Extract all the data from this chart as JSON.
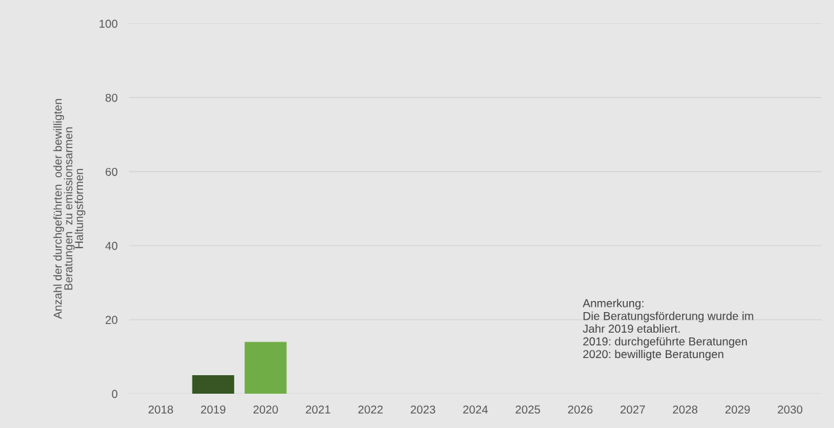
{
  "chart_data": {
    "type": "bar",
    "ylabel": "Anzahl der durchgeführten  oder bewilligten\nBeratungen  zu emissionsarmen\nHaltungsformen",
    "categories": [
      "2018",
      "2019",
      "2020",
      "2021",
      "2022",
      "2023",
      "2024",
      "2025",
      "2026",
      "2027",
      "2028",
      "2029",
      "2030"
    ],
    "values": [
      null,
      5,
      14,
      null,
      null,
      null,
      null,
      null,
      null,
      null,
      null,
      null,
      null
    ],
    "colors": [
      "#70ad47",
      "#375623",
      "#70ad47",
      "#70ad47",
      "#70ad47",
      "#70ad47",
      "#70ad47",
      "#70ad47",
      "#70ad47",
      "#70ad47",
      "#70ad47",
      "#70ad47",
      "#70ad47"
    ],
    "ylim": [
      0,
      100
    ],
    "yticks": [
      0,
      20,
      40,
      60,
      80,
      100
    ],
    "grid": "y",
    "annotations": [
      "Anmerkung:\nDie Beratungsförderung wurde im\nJahr 2019 etabliert.\n2019: durchgeführte Beratungen\n2020: bewilligte Beratungen"
    ]
  }
}
